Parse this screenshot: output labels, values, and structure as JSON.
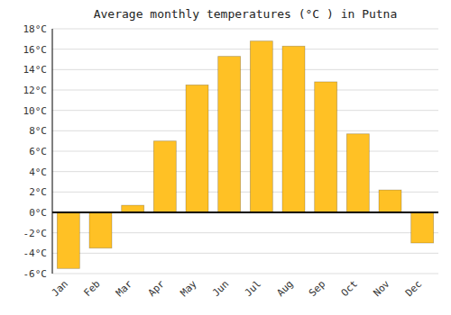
{
  "chart_data": {
    "type": "bar",
    "title": "Average monthly temperatures (°C ) in Putna",
    "categories": [
      "Jan",
      "Feb",
      "Mar",
      "Apr",
      "May",
      "Jun",
      "Jul",
      "Aug",
      "Sep",
      "Oct",
      "Nov",
      "Dec"
    ],
    "values": [
      -5.5,
      -3.5,
      0.7,
      7.0,
      12.5,
      15.3,
      16.8,
      16.3,
      12.8,
      7.7,
      2.2,
      -3.0
    ],
    "color": "#FFC125",
    "ylim": [
      -6,
      18
    ],
    "yticks": [
      {
        "value": -6,
        "label": "-6°C"
      },
      {
        "value": -4,
        "label": "-4°C"
      },
      {
        "value": -2,
        "label": "-2°C"
      },
      {
        "value": 0,
        "label": "0°C"
      },
      {
        "value": 2,
        "label": "2°C"
      },
      {
        "value": 4,
        "label": "4°C"
      },
      {
        "value": 6,
        "label": "6°C"
      },
      {
        "value": 8,
        "label": "8°C"
      },
      {
        "value": 10,
        "label": "10°C"
      },
      {
        "value": 12,
        "label": "12°C"
      },
      {
        "value": 14,
        "label": "14°C"
      },
      {
        "value": 16,
        "label": "16°C"
      },
      {
        "value": 18,
        "label": "18°C"
      }
    ],
    "grid": true
  }
}
